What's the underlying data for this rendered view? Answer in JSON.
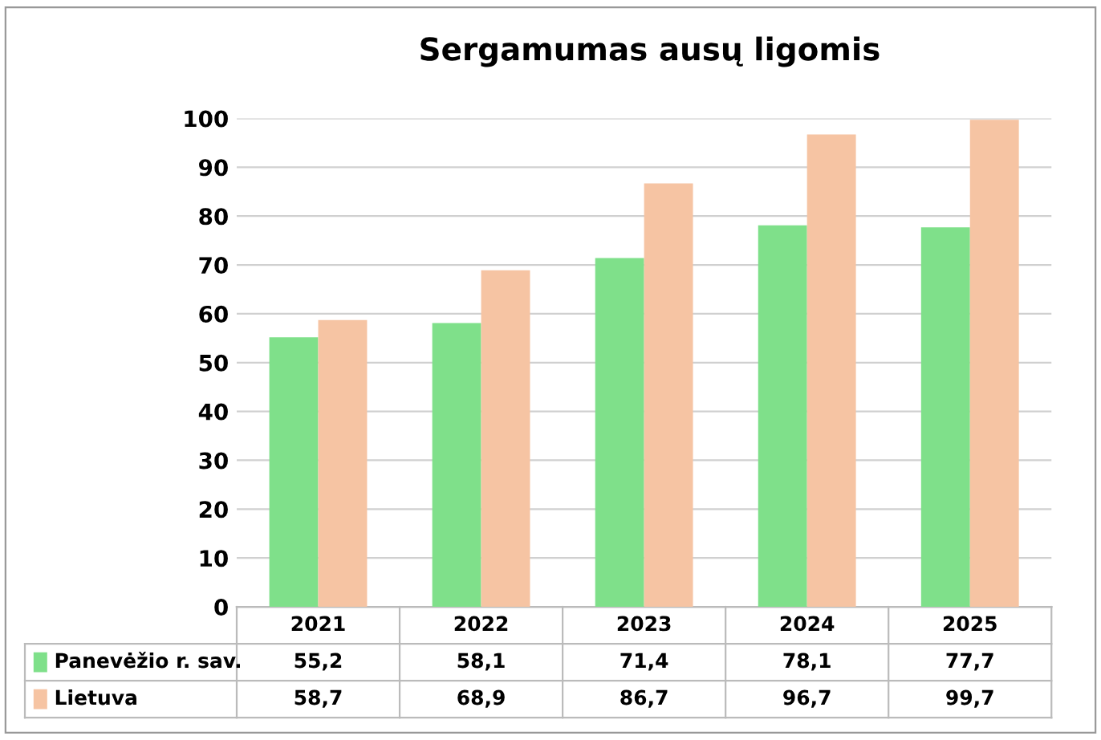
{
  "chart_data": {
    "type": "bar",
    "title": "Sergamumas ausų ligomis",
    "categories": [
      "2021",
      "2022",
      "2023",
      "2024",
      "2025"
    ],
    "series": [
      {
        "name": "Panevėžio r. sav.",
        "color": "#7fe08a",
        "values": [
          55.2,
          58.1,
          71.4,
          78.1,
          77.7
        ],
        "value_labels": [
          "55,2",
          "58,1",
          "71,4",
          "78,1",
          "77,7"
        ]
      },
      {
        "name": "Lietuva",
        "color": "#f6c4a3",
        "values": [
          58.7,
          68.9,
          86.7,
          96.7,
          99.7
        ],
        "value_labels": [
          "58,7",
          "68,9",
          "86,7",
          "96,7",
          "99,7"
        ]
      }
    ],
    "ylim": [
      0,
      100
    ],
    "yticks": [
      0,
      10,
      20,
      30,
      40,
      50,
      60,
      70,
      80,
      90,
      100
    ],
    "grid": "y",
    "legend": "bottom"
  }
}
